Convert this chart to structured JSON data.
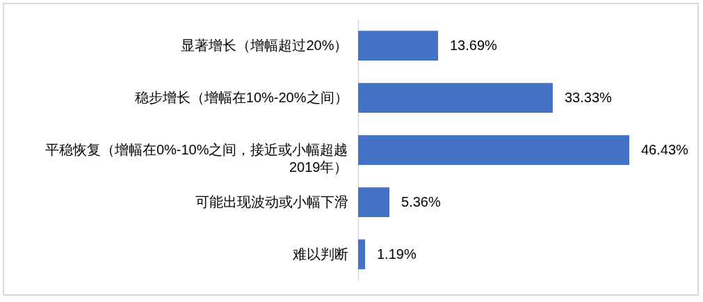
{
  "chart_data": {
    "type": "bar",
    "orientation": "horizontal",
    "categories": [
      "显著增长（增幅超过20%）",
      "稳步增长（增幅在10%-20%之间）",
      "平稳恢复（增幅在0%-10%之间，接近或小幅超越2019年）",
      "可能出现波动或小幅下滑",
      "难以判断"
    ],
    "values": [
      13.69,
      33.33,
      46.43,
      5.36,
      1.19
    ],
    "value_labels": [
      "13.69%",
      "33.33%",
      "46.43%",
      "5.36%",
      "1.19%"
    ],
    "color": "#4472c4"
  }
}
